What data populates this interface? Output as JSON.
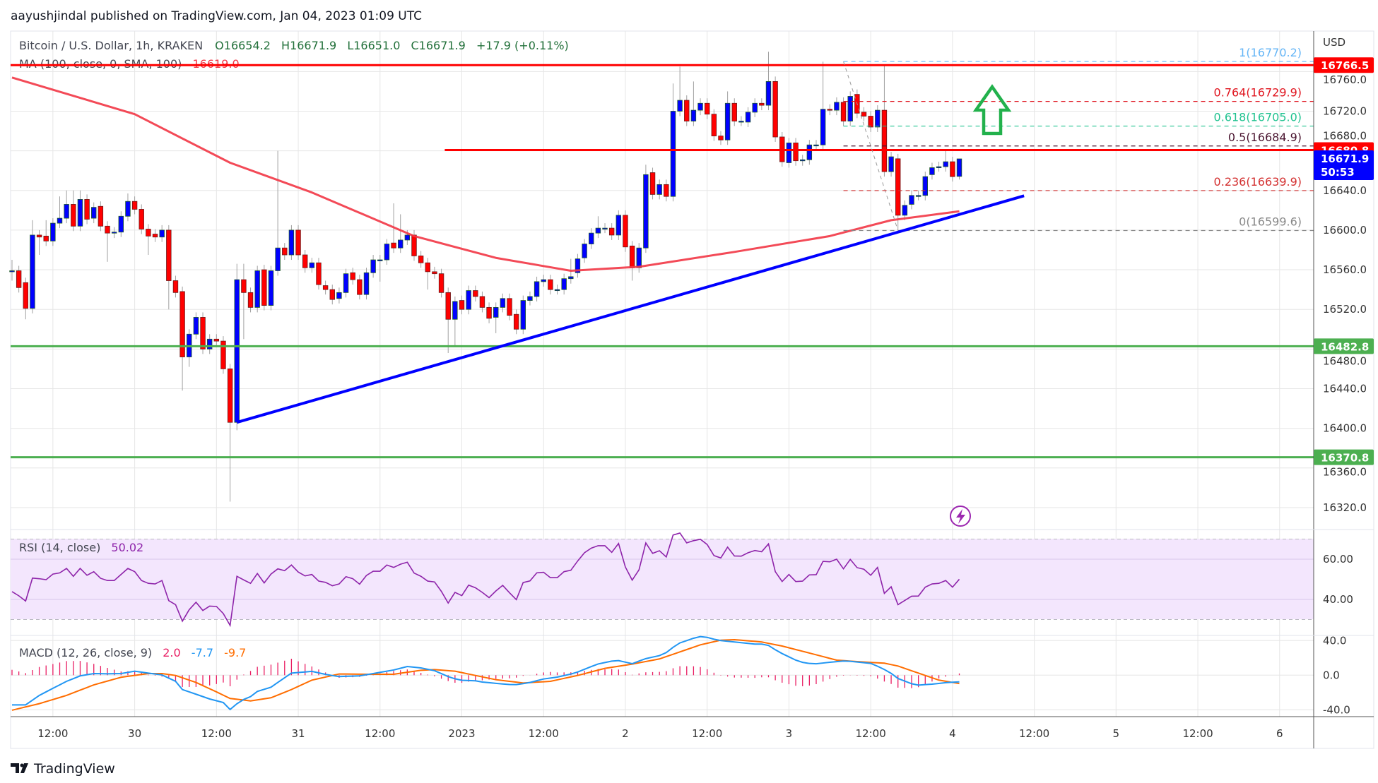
{
  "header": {
    "published": "aayushjindal published on TradingView.com, Jan 04, 2023 01:09 UTC"
  },
  "legend": {
    "symbol": "Bitcoin / U.S. Dollar, 1h, KRAKEN",
    "open": "O16654.2",
    "high": "H16671.9",
    "low": "L16651.0",
    "close": "C16671.9",
    "change": "+17.9 (+0.11%)",
    "ma_label": "MA (100, close, 0, SMA, 100)",
    "ma_value": "16619.0"
  },
  "price_axis": {
    "currency": "USD",
    "ticks": [
      "16760.0",
      "16720.0",
      "16680.0",
      "16640.0",
      "16600.0",
      "16560.0",
      "16520.0",
      "16480.0",
      "16440.0",
      "16400.0",
      "16360.0",
      "16320.0"
    ]
  },
  "badges": [
    {
      "text": "16766.5",
      "price": 16766.5,
      "color": "#ff0000"
    },
    {
      "text": "16680.8",
      "price": 16680.8,
      "color": "#ff0000"
    },
    {
      "text": "16482.8",
      "price": 16482.8,
      "color": "#4caf50"
    },
    {
      "text": "16370.8",
      "price": 16370.8,
      "color": "#4caf50"
    }
  ],
  "last_price": {
    "text": "16671.9",
    "countdown": "50:53",
    "price": 16671.9,
    "color": "#0000ff"
  },
  "time_axis": {
    "labels": [
      "12:00",
      "30",
      "12:00",
      "31",
      "12:00",
      "2023",
      "12:00",
      "2",
      "12:00",
      "3",
      "12:00",
      "4",
      "12:00",
      "5",
      "12:00",
      "6"
    ]
  },
  "hlines": [
    {
      "price": 16766.5,
      "color": "#ff0000",
      "from_candle": -1
    },
    {
      "price": 16680.8,
      "color": "#ff0000",
      "from_candle": 63.5
    },
    {
      "price": 16482.8,
      "color": "#4caf50",
      "from_candle": -1
    },
    {
      "price": 16370.8,
      "color": "#4caf50",
      "from_candle": -1
    }
  ],
  "fib": [
    {
      "label": "1(16770.2)",
      "price": 16770.2,
      "color": "#64b5f6"
    },
    {
      "label": "0.764(16729.9)",
      "price": 16729.9,
      "color": "#e0141e"
    },
    {
      "label": "0.618(16705.0)",
      "price": 16705.0,
      "color": "#1fc28f"
    },
    {
      "label": "0.5(16684.9)",
      "price": 16684.9,
      "color": "#4a1530"
    },
    {
      "label": "0.236(16639.9)",
      "price": 16639.9,
      "color": "#d32f2f"
    },
    {
      "label": "0(16599.6)",
      "price": 16599.6,
      "color": "#888888"
    }
  ],
  "rsi": {
    "label": "RSI (14, close)",
    "value": "50.02",
    "ticks": [
      "60.00",
      "40.00"
    ],
    "values": [
      43.9,
      41.8,
      39.2,
      50.6,
      50.3,
      49.8,
      52.6,
      53.2,
      55.4,
      51.5,
      55.4,
      52,
      53.8,
      50.5,
      49.4,
      49.4,
      52.4,
      55.4,
      53.8,
      49.4,
      48,
      47.7,
      49.4,
      39.4,
      37.4,
      29.2,
      34.9,
      38.6,
      34.5,
      36.7,
      36.5,
      33,
      27.1,
      51.5,
      49.7,
      48,
      52.9,
      48.2,
      52.6,
      55.2,
      54.3,
      57.1,
      53.6,
      51.7,
      52.4,
      49.1,
      48.5,
      46.8,
      47.7,
      51.3,
      50.3,
      47.6,
      51.9,
      54,
      54,
      57.1,
      55.9,
      57.5,
      58.5,
      53.1,
      51.5,
      49.1,
      48.7,
      44,
      38.2,
      43.5,
      41.9,
      47.1,
      45.8,
      43.5,
      40.9,
      44.2,
      47,
      43.3,
      39.9,
      48.4,
      49.2,
      53.2,
      53.5,
      50.8,
      50.8,
      53.8,
      54.5,
      59.1,
      63.2,
      65.5,
      66.7,
      66.7,
      63.4,
      67.8,
      56.1,
      49.6,
      54.7,
      68.1,
      62.9,
      64.2,
      61.1,
      72,
      73,
      68.1,
      69.2,
      69.9,
      67.3,
      61.8,
      60.6,
      66,
      61.6,
      61.5,
      63.2,
      64.3,
      63.7,
      67.6,
      53.8,
      48.9,
      52.4,
      48.9,
      49.1,
      52.2,
      52.3,
      58.9,
      58.7,
      60,
      55.2,
      59.9,
      55.8,
      55,
      52,
      55.9,
      43,
      46.3,
      37.4,
      39.5,
      41.6,
      41.7,
      46.1,
      47.7,
      48,
      49.4,
      46.1,
      50.02
    ]
  },
  "macd": {
    "label": "MACD (12, 26, close, 9)",
    "hist_value": "2.0",
    "macd_value": "-7.7",
    "signal_value": "-9.7",
    "ticks": [
      "40.0",
      "0.0",
      "-40.0"
    ],
    "macd_points": [
      [
        0,
        -34.3
      ],
      [
        2,
        -34.3
      ],
      [
        4,
        -23.4
      ],
      [
        6,
        -15.2
      ],
      [
        8,
        -7.1
      ],
      [
        10,
        -0.8
      ],
      [
        12,
        1.9
      ],
      [
        14,
        1.6
      ],
      [
        16,
        1.9
      ],
      [
        18,
        4.6
      ],
      [
        20,
        2.4
      ],
      [
        22,
        0.3
      ],
      [
        24,
        -7.1
      ],
      [
        25,
        -16.6
      ],
      [
        27,
        -22
      ],
      [
        29,
        -27.5
      ],
      [
        31,
        -31.6
      ],
      [
        32,
        -39.7
      ],
      [
        33.5,
        -29.7
      ],
      [
        35,
        -24.8
      ],
      [
        36,
        -18.8
      ],
      [
        38,
        -13.9
      ],
      [
        39,
        -8.4
      ],
      [
        41,
        2.4
      ],
      [
        44,
        4.4
      ],
      [
        46.4,
        0.3
      ],
      [
        48,
        -1.6
      ],
      [
        51,
        -0.8
      ],
      [
        54,
        3.3
      ],
      [
        56,
        6
      ],
      [
        58,
        10
      ],
      [
        60,
        8.4
      ],
      [
        62,
        5.2
      ],
      [
        64,
        -1.6
      ],
      [
        65.6,
        -5.7
      ],
      [
        68,
        -6.5
      ],
      [
        69,
        -7.9
      ],
      [
        71.5,
        -9.8
      ],
      [
        73.7,
        -11.2
      ],
      [
        75.7,
        -9
      ],
      [
        78,
        -4.4
      ],
      [
        79.9,
        -2.4
      ],
      [
        82.6,
        2.4
      ],
      [
        85.9,
        12.8
      ],
      [
        88.7,
        17.4
      ],
      [
        91,
        13.3
      ],
      [
        92.8,
        18.8
      ],
      [
        95.6,
        23.7
      ],
      [
        97.7,
        36.5
      ],
      [
        100.7,
        44.6
      ],
      [
        101.6,
        44.6
      ],
      [
        103.5,
        40.5
      ],
      [
        106.7,
        37.8
      ],
      [
        109.5,
        35.6
      ],
      [
        110.6,
        36.4
      ],
      [
        112.5,
        26.9
      ],
      [
        115.5,
        15.5
      ],
      [
        117.6,
        12.8
      ],
      [
        119.7,
        14.7
      ],
      [
        122.4,
        16.6
      ],
      [
        126.4,
        13.3
      ],
      [
        127.5,
        7.9
      ],
      [
        128.5,
        5.2
      ],
      [
        129.9,
        -3.5
      ],
      [
        132.6,
        -11.7
      ],
      [
        135.4,
        -10.1
      ],
      [
        137.3,
        -8.4
      ],
      [
        139,
        -7.7
      ]
    ],
    "signal_points": [
      [
        0,
        -40.5
      ],
      [
        4,
        -32.9
      ],
      [
        8,
        -23.4
      ],
      [
        12,
        -11.2
      ],
      [
        16,
        -2.4
      ],
      [
        20,
        1.9
      ],
      [
        22,
        1.9
      ],
      [
        24,
        -0.3
      ],
      [
        27,
        -8.4
      ],
      [
        30,
        -19.3
      ],
      [
        32,
        -26.9
      ],
      [
        35,
        -29.7
      ],
      [
        38,
        -26.1
      ],
      [
        41,
        -16.6
      ],
      [
        44,
        -5.7
      ],
      [
        48,
        1.4
      ],
      [
        52,
        1.1
      ],
      [
        56,
        1.1
      ],
      [
        60,
        5.7
      ],
      [
        62,
        6.5
      ],
      [
        65,
        4.6
      ],
      [
        68,
        -0.3
      ],
      [
        71,
        -5.2
      ],
      [
        75,
        -9
      ],
      [
        79,
        -7.1
      ],
      [
        83,
        -0.3
      ],
      [
        87,
        7.9
      ],
      [
        91,
        12.8
      ],
      [
        95,
        18.8
      ],
      [
        98,
        26.9
      ],
      [
        101,
        35.1
      ],
      [
        104,
        40.5
      ],
      [
        106,
        41.1
      ],
      [
        110,
        38.4
      ],
      [
        113,
        33.7
      ],
      [
        117,
        25.6
      ],
      [
        121,
        17.4
      ],
      [
        125,
        15.2
      ],
      [
        128,
        13.9
      ],
      [
        130,
        10.6
      ],
      [
        133,
        2.4
      ],
      [
        136,
        -5.7
      ],
      [
        139,
        -9.7
      ]
    ]
  },
  "footer": {
    "brand": "TradingView"
  },
  "colors": {
    "up": "#0000ff",
    "down": "#ff0000",
    "ma": "#f23645",
    "trendline": "#0000ff",
    "rsi": "#8e24aa",
    "macd": "#2196f3",
    "signal": "#ff6d00",
    "hist": "#e91e63",
    "arrow": "#22b14c",
    "alert": "#9c27b0"
  },
  "chart_data": {
    "type": "candlestick",
    "title": "Bitcoin / U.S. Dollar, 1h, KRAKEN",
    "interval": "1h",
    "first_candle": "Dec 29 06:00",
    "last_candle": "Jan 4 01:00",
    "ylim": [
      16300,
      16790
    ],
    "candles_oc": [
      [
        16559,
        16559,
        16570,
        16549
      ],
      [
        16559,
        16542
      ],
      [
        16547,
        16521,
        null,
        16510
      ],
      [
        16521,
        16595,
        16610
      ],
      [
        16595,
        16593,
        null,
        16575
      ],
      [
        16594,
        16589,
        16610
      ],
      [
        16589,
        16607
      ],
      [
        16607,
        16612,
        16634
      ],
      [
        16612,
        16626,
        16640
      ],
      [
        16626,
        16604,
        16640
      ],
      [
        16604,
        16631,
        16640
      ],
      [
        16631,
        16611
      ],
      [
        16612,
        16623
      ],
      [
        16624,
        16604
      ],
      [
        16604,
        16597,
        null,
        16568
      ],
      [
        16597,
        16598
      ],
      [
        16598,
        16614
      ],
      [
        16614,
        16629,
        16637
      ],
      [
        16629,
        16621
      ],
      [
        16621,
        16601
      ],
      [
        16601,
        16594,
        null,
        16575
      ],
      [
        16596,
        16593
      ],
      [
        16593,
        16600
      ],
      [
        16600,
        16549,
        null,
        16520
      ],
      [
        16549,
        16537
      ],
      [
        16538,
        16472,
        null,
        16438
      ],
      [
        16472,
        16495,
        null,
        16462
      ],
      [
        16495,
        16512
      ],
      [
        16512,
        16480
      ],
      [
        16480,
        16490
      ],
      [
        16490,
        16488
      ],
      [
        16488,
        16460
      ],
      [
        16460,
        16406,
        null,
        16326
      ],
      [
        16406,
        16550,
        16566,
        16398
      ],
      [
        16550,
        16537,
        16566,
        16490
      ],
      [
        16537,
        16522
      ],
      [
        16522,
        16559
      ],
      [
        16560,
        16524
      ],
      [
        16524,
        16559
      ],
      [
        16559,
        16582,
        16680
      ],
      [
        16582,
        16575
      ],
      [
        16575,
        16600
      ],
      [
        16600,
        16575
      ],
      [
        16575,
        16562
      ],
      [
        16562,
        16567
      ],
      [
        16567,
        16545
      ],
      [
        16544,
        16540
      ],
      [
        16540,
        16530
      ],
      [
        16531,
        16537
      ],
      [
        16537,
        16556
      ],
      [
        16557,
        16550
      ],
      [
        16550,
        16535
      ],
      [
        16535,
        16557
      ],
      [
        16557,
        16570
      ],
      [
        16570,
        16570,
        null,
        16548
      ],
      [
        16570,
        16586
      ],
      [
        16587,
        16582,
        16627
      ],
      [
        16582,
        16590,
        16616
      ],
      [
        16590,
        16595
      ],
      [
        16595,
        16574
      ],
      [
        16574,
        16567
      ],
      [
        16567,
        16558,
        null,
        16540
      ],
      [
        16558,
        16556
      ],
      [
        16556,
        16537
      ],
      [
        16537,
        16510,
        null,
        16476
      ],
      [
        16510,
        16528,
        null,
        16483
      ],
      [
        16529,
        16520
      ],
      [
        16520,
        16539
      ],
      [
        16539,
        16533
      ],
      [
        16533,
        16522
      ],
      [
        16522,
        16511
      ],
      [
        16512,
        16522,
        null,
        16496
      ],
      [
        16522,
        16531
      ],
      [
        16531,
        16514
      ],
      [
        16515,
        16500
      ],
      [
        16500,
        16529
      ],
      [
        16529,
        16533
      ],
      [
        16533,
        16548
      ],
      [
        16548,
        16550
      ],
      [
        16550,
        16540
      ],
      [
        16540,
        16540
      ],
      [
        16540,
        16551
      ],
      [
        16551,
        16553,
        16571
      ],
      [
        16557,
        16571
      ],
      [
        16572,
        16586
      ],
      [
        16586,
        16597
      ],
      [
        16597,
        16602,
        16614
      ],
      [
        16602,
        16602
      ],
      [
        16602,
        16595
      ],
      [
        16595,
        16615
      ],
      [
        16615,
        16583,
        16620
      ],
      [
        16584,
        16562,
        null,
        16549
      ],
      [
        16562,
        16582
      ],
      [
        16582,
        16656,
        16666
      ],
      [
        16658,
        16636
      ],
      [
        16636,
        16646
      ],
      [
        16646,
        16634
      ],
      [
        16634,
        16720,
        16748
      ],
      [
        16720,
        16731,
        16765
      ],
      [
        16731,
        16710
      ],
      [
        16710,
        16721,
        16750
      ],
      [
        16721,
        16728
      ],
      [
        16728,
        16717
      ],
      [
        16717,
        16695
      ],
      [
        16695,
        16691
      ],
      [
        16691,
        16728,
        16740
      ],
      [
        16728,
        16710
      ],
      [
        16710,
        16710
      ],
      [
        16709,
        16719
      ],
      [
        16719,
        16728
      ],
      [
        16728,
        16726
      ],
      [
        16726,
        16750,
        16780
      ],
      [
        16750,
        16694
      ],
      [
        16694,
        16669
      ],
      [
        16668,
        16688
      ],
      [
        16688,
        16670
      ],
      [
        16670,
        16671
      ],
      [
        16671,
        16686
      ],
      [
        16686,
        16686
      ],
      [
        16686,
        16722,
        16770
      ],
      [
        16722,
        16721
      ],
      [
        16721,
        16729
      ],
      [
        16729,
        16710
      ],
      [
        16710,
        16735
      ],
      [
        16737,
        16718
      ],
      [
        16719,
        16715
      ],
      [
        16715,
        16704
      ],
      [
        16704,
        16721
      ],
      [
        16721,
        16659,
        16767
      ],
      [
        16659,
        16674
      ],
      [
        16672,
        16615,
        null,
        16600
      ],
      [
        16615,
        16625
      ],
      [
        16626,
        16635
      ],
      [
        16635,
        16635
      ],
      [
        16635,
        16654
      ],
      [
        16656,
        16663
      ],
      [
        16664,
        16664
      ],
      [
        16664,
        16669,
        16680
      ],
      [
        16669,
        16654
      ],
      [
        16654.2,
        16671.9,
        16671.9,
        16651.0
      ]
    ],
    "ma_points": [
      [
        0,
        16754
      ],
      [
        18,
        16717
      ],
      [
        32,
        16668
      ],
      [
        44,
        16638
      ],
      [
        59,
        16594
      ],
      [
        71,
        16572
      ],
      [
        82,
        16559
      ],
      [
        92,
        16563
      ],
      [
        106,
        16578
      ],
      [
        120,
        16594
      ],
      [
        129,
        16610
      ],
      [
        139,
        16619
      ]
    ],
    "trendline": {
      "from": [
        33,
        16406
      ],
      "to": [
        148.5,
        16634.6
      ]
    },
    "fib_range": {
      "from_candle": 122,
      "to_candle": 130,
      "high": 16770.2,
      "low": 16599.6
    }
  }
}
